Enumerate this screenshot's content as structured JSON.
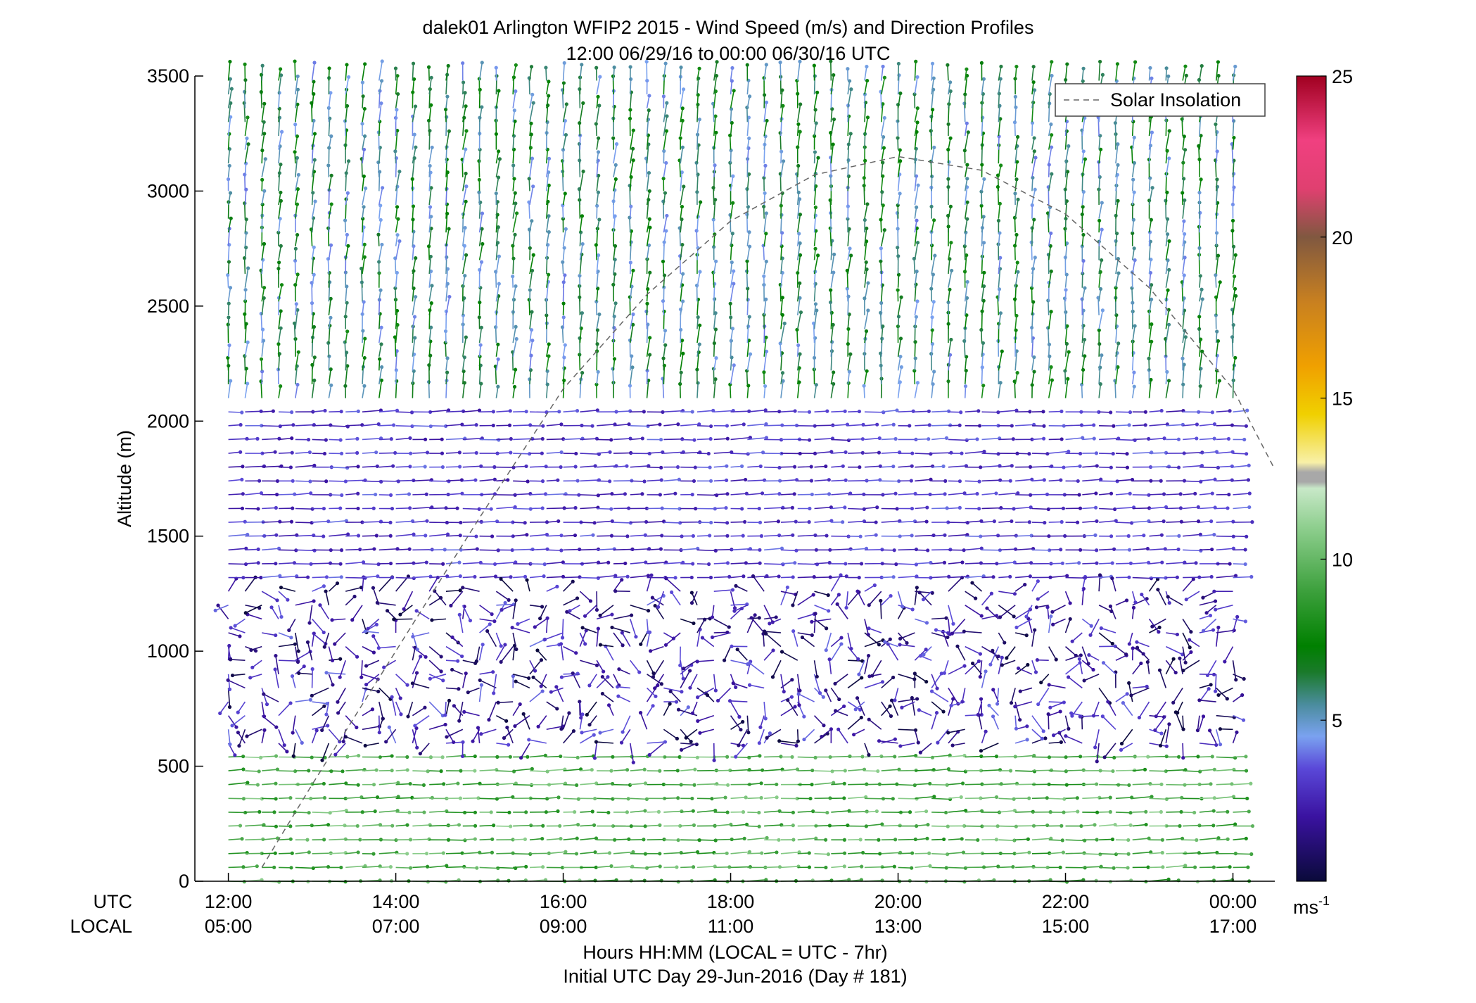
{
  "chart_data": {
    "type": "wind barb profile",
    "title": "dalek01 Arlington WFIP2 2015 - Wind Speed (m/s) and Direction Profiles",
    "subtitle": "12:00 06/29/16 to 00:00 06/30/16  UTC",
    "ylabel": "Altitude (m)",
    "xlabel": "Hours HH:MM  (LOCAL = UTC - 7hr)",
    "footer": "Initial UTC Day 29-Jun-2016 (Day # 181)",
    "utc_row_label": "UTC",
    "local_row_label": "LOCAL",
    "xlim_hours": [
      11.6,
      24.5
    ],
    "ylim": [
      0,
      3500
    ],
    "x_ticks": [
      {
        "hour": 12,
        "utc": "12:00",
        "local": "05:00"
      },
      {
        "hour": 14,
        "utc": "14:00",
        "local": "07:00"
      },
      {
        "hour": 16,
        "utc": "16:00",
        "local": "09:00"
      },
      {
        "hour": 18,
        "utc": "18:00",
        "local": "11:00"
      },
      {
        "hour": 20,
        "utc": "20:00",
        "local": "13:00"
      },
      {
        "hour": 22,
        "utc": "22:00",
        "local": "15:00"
      },
      {
        "hour": 24,
        "utc": "00:00",
        "local": "17:00"
      }
    ],
    "y_ticks": [
      0,
      500,
      1000,
      1500,
      2000,
      2500,
      3000,
      3500
    ],
    "legend": {
      "entry": "Solar Insolation",
      "position": "top-right",
      "line_style": "dashed",
      "color": "#666666"
    },
    "colorbar": {
      "unit_label": "ms",
      "unit_exponent": "-1",
      "range": [
        0,
        25
      ],
      "ticks": [
        5,
        10,
        15,
        20,
        25
      ],
      "colors": [
        {
          "v": 0,
          "c": "#0a0a3a"
        },
        {
          "v": 2,
          "c": "#3a12a0"
        },
        {
          "v": 3.5,
          "c": "#5a48d8"
        },
        {
          "v": 4.5,
          "c": "#7aa2f0"
        },
        {
          "v": 5.5,
          "c": "#4a8c9c"
        },
        {
          "v": 6.5,
          "c": "#1a7a2a"
        },
        {
          "v": 7.3,
          "c": "#008000"
        },
        {
          "v": 9,
          "c": "#3ca03c"
        },
        {
          "v": 11,
          "c": "#8fcf8f"
        },
        {
          "v": 12.2,
          "c": "#c8e8c8"
        },
        {
          "v": 12.4,
          "c": "#a8a8a8"
        },
        {
          "v": 12.7,
          "c": "#a8a8a8"
        },
        {
          "v": 13,
          "c": "#f8f0a8"
        },
        {
          "v": 14.5,
          "c": "#f0d000"
        },
        {
          "v": 16,
          "c": "#f0a000"
        },
        {
          "v": 18,
          "c": "#c88020"
        },
        {
          "v": 20,
          "c": "#805840"
        },
        {
          "v": 21.5,
          "c": "#e04070"
        },
        {
          "v": 23,
          "c": "#f04080"
        },
        {
          "v": 25,
          "c": "#a00020"
        }
      ]
    },
    "solar_insolation_curve": [
      {
        "hour": 12.4,
        "altitude_m": 60
      },
      {
        "hour": 13,
        "altitude_m": 420
      },
      {
        "hour": 14,
        "altitude_m": 1000
      },
      {
        "hour": 15,
        "altitude_m": 1580
      },
      {
        "hour": 16,
        "altitude_m": 2140
      },
      {
        "hour": 17,
        "altitude_m": 2550
      },
      {
        "hour": 18,
        "altitude_m": 2870
      },
      {
        "hour": 19,
        "altitude_m": 3070
      },
      {
        "hour": 20,
        "altitude_m": 3150
      },
      {
        "hour": 21,
        "altitude_m": 3090
      },
      {
        "hour": 22,
        "altitude_m": 2900
      },
      {
        "hour": 23,
        "altitude_m": 2580
      },
      {
        "hour": 24,
        "altitude_m": 2140
      },
      {
        "hour": 24.5,
        "altitude_m": 1790
      }
    ],
    "wind_profile_summary": [
      {
        "altitude_range_m": [
          0,
          600
        ],
        "speed_ms": [
          8,
          11
        ],
        "direction": "westerly"
      },
      {
        "altitude_range_m": [
          600,
          1300
        ],
        "speed_ms": [
          0,
          4
        ],
        "direction": "variable"
      },
      {
        "altitude_range_m": [
          1300,
          2100
        ],
        "speed_ms": [
          2,
          4
        ],
        "direction": "westerly"
      },
      {
        "altitude_range_m": [
          2100,
          3500
        ],
        "speed_ms": [
          4,
          8
        ],
        "direction": "northerly"
      }
    ]
  }
}
